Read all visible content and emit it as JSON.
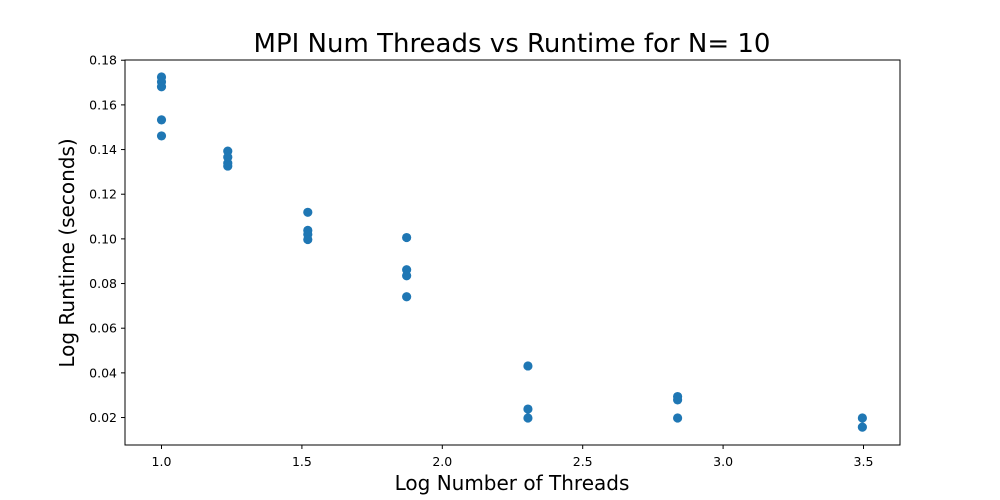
{
  "chart_data": {
    "type": "scatter",
    "title": "MPI Num Threads vs Runtime for N= 10",
    "xlabel": "Log Number of Threads",
    "ylabel": "Log Runtime (seconds)",
    "xlim": [
      0.87,
      3.63
    ],
    "ylim": [
      0.0077,
      0.1801
    ],
    "x_ticks": [
      1.0,
      1.5,
      2.0,
      2.5,
      3.0,
      3.5
    ],
    "x_tick_labels": [
      "1.0",
      "1.5",
      "2.0",
      "2.5",
      "3.0",
      "3.5"
    ],
    "y_ticks": [
      0.02,
      0.04,
      0.06,
      0.08,
      0.1,
      0.12,
      0.14,
      0.16,
      0.18
    ],
    "y_tick_labels": [
      "0.02",
      "0.04",
      "0.06",
      "0.08",
      "0.10",
      "0.12",
      "0.14",
      "0.16",
      "0.18"
    ],
    "grid": false,
    "legend": false,
    "marker_color": "#1f77b4",
    "series": [
      {
        "points": [
          {
            "x": 1.0,
            "y": 0.1725
          },
          {
            "x": 1.0,
            "y": 0.1703
          },
          {
            "x": 1.0,
            "y": 0.1681
          },
          {
            "x": 1.0,
            "y": 0.1533
          },
          {
            "x": 1.0,
            "y": 0.1461
          },
          {
            "x": 1.236,
            "y": 0.1393
          },
          {
            "x": 1.236,
            "y": 0.1366
          },
          {
            "x": 1.236,
            "y": 0.1339
          },
          {
            "x": 1.236,
            "y": 0.1326
          },
          {
            "x": 1.521,
            "y": 0.1119
          },
          {
            "x": 1.521,
            "y": 0.1038
          },
          {
            "x": 1.521,
            "y": 0.102
          },
          {
            "x": 1.521,
            "y": 0.0997
          },
          {
            "x": 1.873,
            "y": 0.1006
          },
          {
            "x": 1.873,
            "y": 0.0862
          },
          {
            "x": 1.873,
            "y": 0.0835
          },
          {
            "x": 1.873,
            "y": 0.0741
          },
          {
            "x": 2.305,
            "y": 0.0431
          },
          {
            "x": 2.305,
            "y": 0.0238
          },
          {
            "x": 2.305,
            "y": 0.0198
          },
          {
            "x": 2.838,
            "y": 0.0294
          },
          {
            "x": 2.838,
            "y": 0.0279
          },
          {
            "x": 2.838,
            "y": 0.0198
          },
          {
            "x": 3.496,
            "y": 0.0198
          },
          {
            "x": 3.496,
            "y": 0.0157
          }
        ]
      }
    ]
  }
}
